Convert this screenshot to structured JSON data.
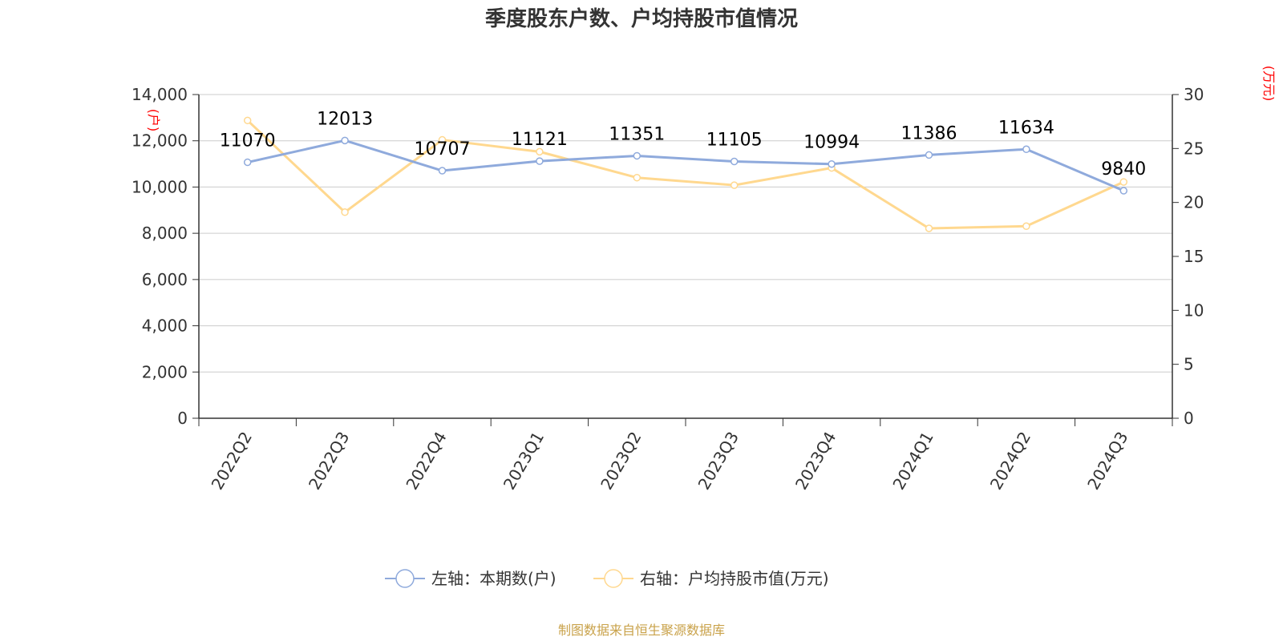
{
  "chart_data": {
    "type": "line",
    "title": "季度股东户数、户均持股市值情况",
    "categories": [
      "2022Q2",
      "2022Q3",
      "2022Q4",
      "2023Q1",
      "2023Q2",
      "2023Q3",
      "2023Q4",
      "2024Q1",
      "2024Q2",
      "2024Q3"
    ],
    "left_axis": {
      "unit": "(户)",
      "min": 0,
      "max": 14000,
      "ticks": [
        "0",
        "2,000",
        "4,000",
        "6,000",
        "8,000",
        "10,000",
        "12,000",
        "14,000"
      ]
    },
    "right_axis": {
      "unit": "(万元)",
      "min": 0,
      "max": 30,
      "ticks": [
        "0",
        "5",
        "10",
        "15",
        "20",
        "25",
        "30"
      ]
    },
    "series": [
      {
        "name": "左轴：本期数(户)",
        "axis": "left",
        "color": "#8faadc",
        "values": [
          11070,
          12013,
          10707,
          11121,
          11351,
          11105,
          10994,
          11386,
          11634,
          9840
        ],
        "labels": [
          "11070",
          "12013",
          "10707",
          "11121",
          "11351",
          "11105",
          "10994",
          "11386",
          "11634",
          "9840"
        ]
      },
      {
        "name": "右轴：户均持股市值(万元)",
        "axis": "right",
        "color": "#ffd88f",
        "values": [
          27.6,
          19.1,
          25.8,
          24.7,
          22.3,
          21.6,
          23.2,
          17.6,
          17.8,
          21.9
        ]
      }
    ],
    "grid": true,
    "legend_position": "bottom-center"
  },
  "source": "制图数据来自恒生聚源数据库"
}
